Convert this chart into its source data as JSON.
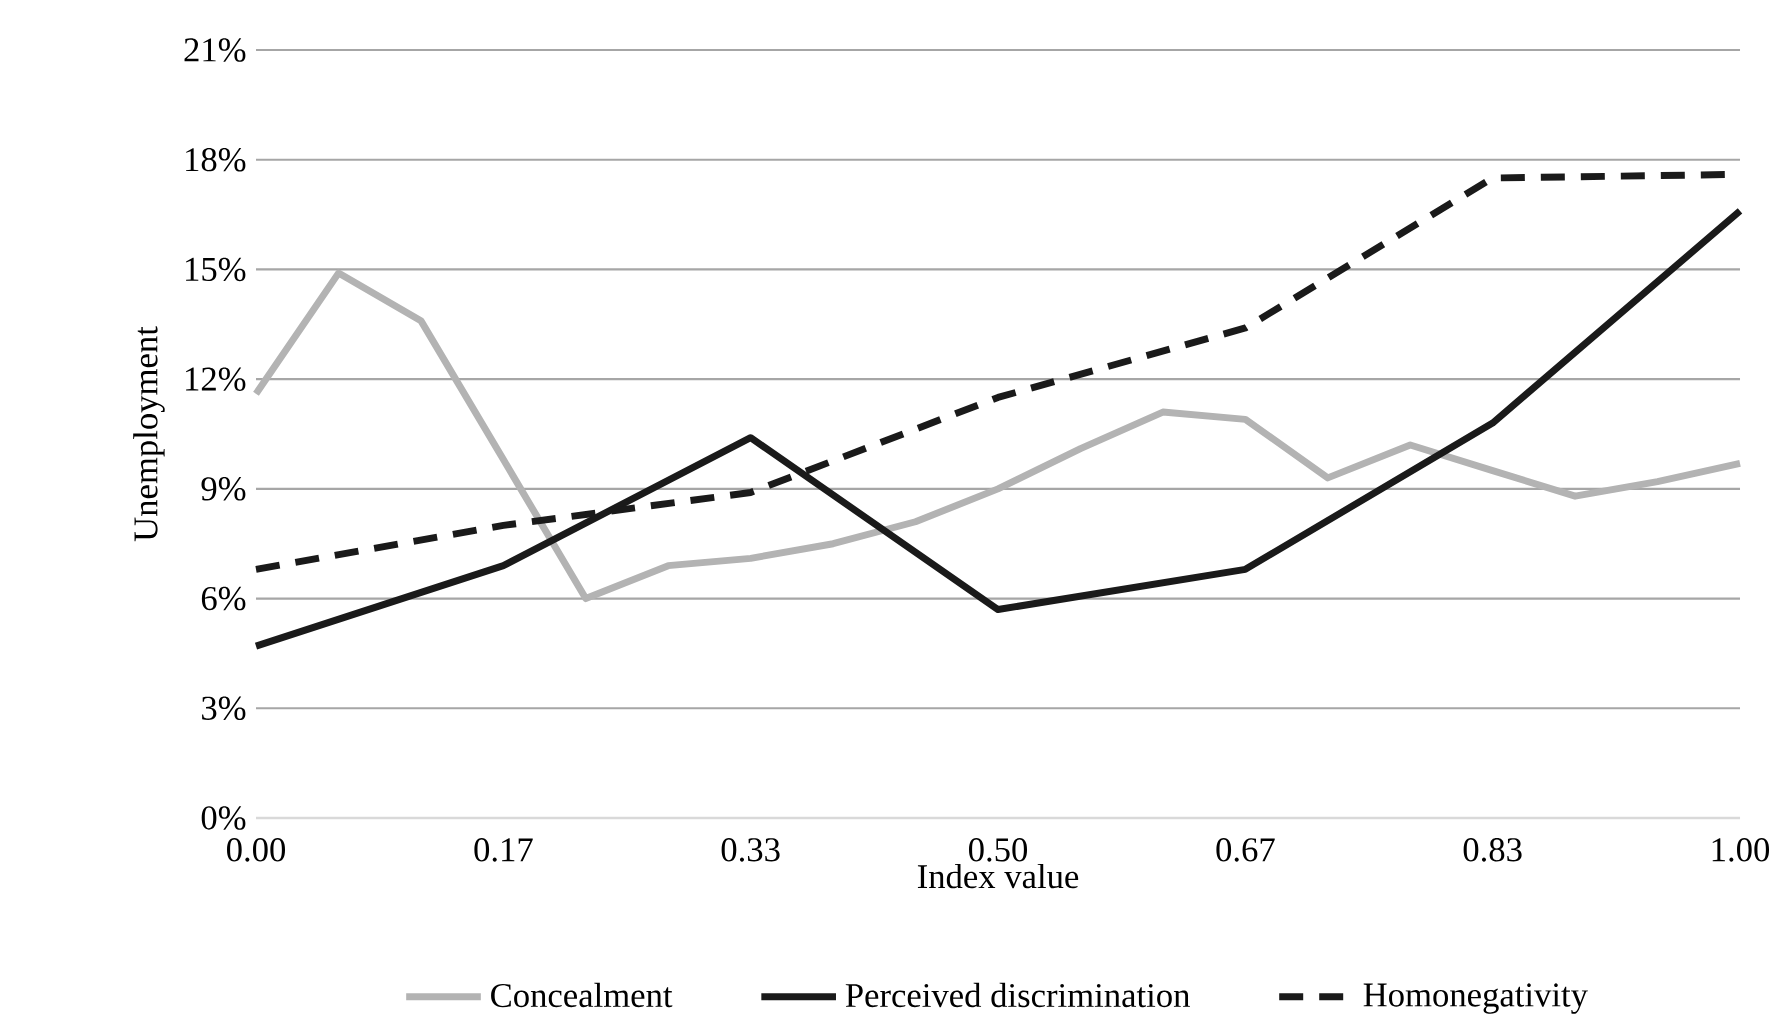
{
  "chart_data": {
    "type": "line",
    "xlabel": "Index value",
    "ylabel": "Unemployment",
    "xlim": [
      0,
      1
    ],
    "ylim": [
      0,
      21
    ],
    "xticks": [
      {
        "value": 0,
        "label": "0.00"
      },
      {
        "value": 0.1667,
        "label": "0.17"
      },
      {
        "value": 0.3333,
        "label": "0.33"
      },
      {
        "value": 0.5,
        "label": "0.50"
      },
      {
        "value": 0.6667,
        "label": "0.67"
      },
      {
        "value": 0.8333,
        "label": "0.83"
      },
      {
        "value": 1,
        "label": "1.00"
      }
    ],
    "yticks": [
      {
        "value": 0,
        "label": "0%"
      },
      {
        "value": 3,
        "label": "3%"
      },
      {
        "value": 6,
        "label": "6%"
      },
      {
        "value": 9,
        "label": "9%"
      },
      {
        "value": 12,
        "label": "12%"
      },
      {
        "value": 15,
        "label": "15%"
      },
      {
        "value": 18,
        "label": "18%"
      },
      {
        "value": 21,
        "label": "21%"
      }
    ],
    "grid": "y",
    "legend": "bottom",
    "marker": "none",
    "series": [
      {
        "name": "Concealment",
        "color": "#b3b3b3",
        "line_style": "solid",
        "x": [
          0,
          0.0556,
          0.1111,
          0.1667,
          0.2222,
          0.2778,
          0.3333,
          0.3889,
          0.4444,
          0.5,
          0.5556,
          0.6111,
          0.6667,
          0.7222,
          0.7778,
          0.8333,
          0.8889,
          0.9444,
          1
        ],
        "values": [
          11.6,
          14.9,
          13.6,
          9.8,
          6.0,
          6.9,
          7.1,
          7.5,
          8.1,
          9.0,
          10.1,
          11.1,
          10.9,
          9.3,
          10.2,
          9.5,
          8.8,
          9.2,
          9.7
        ]
      },
      {
        "name": "Perceived discrimination",
        "color": "#1a1a1a",
        "line_style": "solid",
        "x": [
          0,
          0.1667,
          0.3333,
          0.5,
          0.6667,
          0.8333,
          1
        ],
        "values": [
          4.7,
          6.9,
          10.4,
          5.7,
          6.8,
          10.8,
          16.6
        ]
      },
      {
        "name": "Homonegativity",
        "color": "#1a1a1a",
        "line_style": "dashed",
        "x": [
          0,
          0.1667,
          0.3333,
          0.5,
          0.6667,
          0.8333,
          1
        ],
        "values": [
          6.8,
          8.0,
          8.9,
          11.5,
          13.4,
          17.5,
          17.6
        ]
      }
    ]
  }
}
